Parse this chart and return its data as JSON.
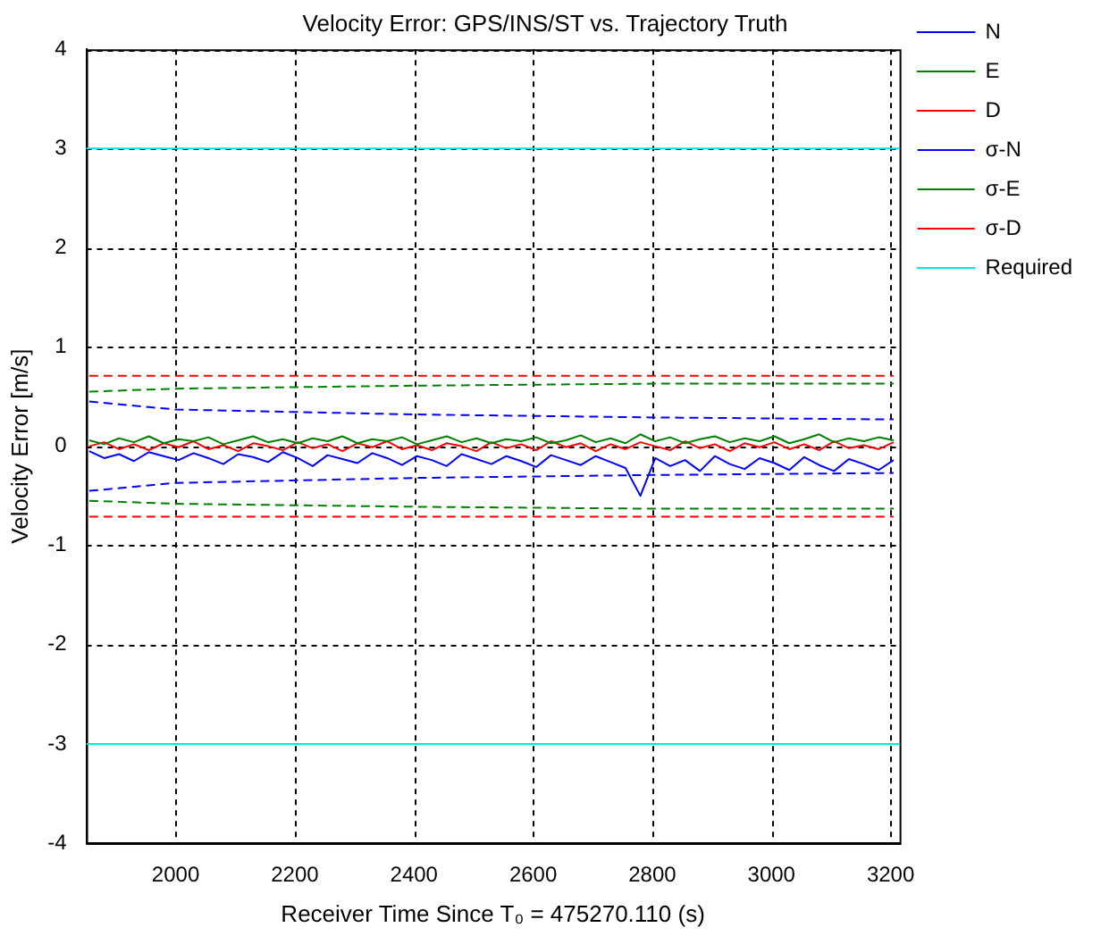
{
  "chart_data": {
    "type": "line",
    "title": "Velocity Error: GPS/INS/ST vs. Trajectory Truth",
    "xlabel": "Receiver Time Since T₀ = 475270.110 (s)",
    "ylabel": "Velocity Error [m/s]",
    "xlim": [
      1850,
      3215
    ],
    "xticks": [
      2000,
      2200,
      2400,
      2600,
      2800,
      3000,
      3200
    ],
    "ylim": [
      -4,
      4
    ],
    "yticks": [
      -4,
      -3,
      -2,
      -1,
      0,
      1,
      2,
      3,
      4
    ],
    "grid": true,
    "legend": "top right",
    "line_style": "solid",
    "marker": "none",
    "x": [
      1855,
      1880,
      1905,
      1930,
      1955,
      1980,
      2005,
      2030,
      2055,
      2080,
      2105,
      2130,
      2155,
      2180,
      2205,
      2230,
      2255,
      2280,
      2305,
      2330,
      2355,
      2380,
      2405,
      2430,
      2455,
      2480,
      2505,
      2530,
      2555,
      2580,
      2605,
      2630,
      2655,
      2680,
      2705,
      2730,
      2755,
      2780,
      2805,
      2830,
      2855,
      2880,
      2905,
      2930,
      2955,
      2980,
      3005,
      3030,
      3055,
      3080,
      3105,
      3130,
      3155,
      3180,
      3205
    ],
    "series": [
      {
        "name": "N",
        "color": "#0000ff",
        "values": [
          -0.05,
          -0.12,
          -0.08,
          -0.15,
          -0.06,
          -0.1,
          -0.14,
          -0.07,
          -0.12,
          -0.18,
          -0.08,
          -0.11,
          -0.16,
          -0.06,
          -0.12,
          -0.2,
          -0.09,
          -0.13,
          -0.17,
          -0.07,
          -0.12,
          -0.19,
          -0.1,
          -0.14,
          -0.2,
          -0.08,
          -0.13,
          -0.18,
          -0.1,
          -0.15,
          -0.21,
          -0.09,
          -0.14,
          -0.19,
          -0.1,
          -0.16,
          -0.22,
          -0.5,
          -0.12,
          -0.2,
          -0.14,
          -0.25,
          -0.1,
          -0.18,
          -0.23,
          -0.12,
          -0.17,
          -0.24,
          -0.11,
          -0.19,
          -0.25,
          -0.13,
          -0.18,
          -0.24,
          -0.14
        ]
      },
      {
        "name": "E",
        "color": "#008000",
        "values": [
          0.06,
          0.02,
          0.08,
          0.04,
          0.1,
          0.03,
          0.07,
          0.05,
          0.09,
          0.02,
          0.06,
          0.1,
          0.04,
          0.07,
          0.03,
          0.08,
          0.05,
          0.1,
          0.03,
          0.07,
          0.05,
          0.09,
          0.02,
          0.06,
          0.1,
          0.04,
          0.08,
          0.03,
          0.07,
          0.05,
          0.09,
          0.03,
          0.06,
          0.11,
          0.04,
          0.08,
          0.03,
          0.12,
          0.05,
          0.09,
          0.03,
          0.07,
          0.1,
          0.04,
          0.08,
          0.05,
          0.1,
          0.03,
          0.07,
          0.12,
          0.04,
          0.08,
          0.05,
          0.09,
          0.06
        ]
      },
      {
        "name": "D",
        "color": "#ff0000",
        "values": [
          0,
          0.04,
          -0.03,
          0.02,
          -0.04,
          0.03,
          -0.01,
          0.05,
          -0.03,
          0.01,
          -0.05,
          0.03,
          0,
          -0.04,
          0.04,
          -0.02,
          0.02,
          -0.05,
          0.03,
          -0.01,
          0.05,
          -0.03,
          0.01,
          -0.04,
          0.03,
          0,
          -0.05,
          0.04,
          -0.02,
          0.02,
          -0.04,
          0.05,
          -0.01,
          0.03,
          -0.05,
          0.02,
          -0.03,
          0.04,
          0,
          -0.04,
          0.05,
          -0.02,
          0.02,
          -0.05,
          0.03,
          -0.01,
          0.04,
          -0.03,
          0.02,
          -0.04,
          0.05,
          -0.02,
          0.01,
          -0.03,
          0.04
        ]
      },
      {
        "name": "σ-N",
        "color": "#0000ff",
        "line_style": "dashed",
        "x": [
          1855,
          2000,
          2400,
          2800,
          3205
        ],
        "values": [
          0.45,
          0.37,
          0.32,
          0.29,
          0.27
        ]
      },
      {
        "color": "#0000ff",
        "line_style": "dashed",
        "x": [
          1855,
          2000,
          2400,
          2800,
          3205
        ],
        "values": [
          -0.45,
          -0.37,
          -0.32,
          -0.29,
          -0.27
        ]
      },
      {
        "name": "σ-E",
        "color": "#008000",
        "line_style": "dashed",
        "x": [
          1855,
          2000,
          2400,
          2800,
          3205
        ],
        "values": [
          0.55,
          0.58,
          0.61,
          0.63,
          0.63
        ]
      },
      {
        "color": "#008000",
        "line_style": "dashed",
        "x": [
          1855,
          2000,
          2400,
          2800,
          3205
        ],
        "values": [
          -0.55,
          -0.58,
          -0.61,
          -0.63,
          -0.63
        ]
      },
      {
        "name": "σ-D",
        "color": "#ff0000",
        "line_style": "dashed",
        "x": [
          1855,
          2000,
          2400,
          2800,
          3205
        ],
        "values": [
          0.71,
          0.71,
          0.71,
          0.71,
          0.71
        ]
      },
      {
        "color": "#ff0000",
        "line_style": "dashed",
        "x": [
          1855,
          2000,
          2400,
          2800,
          3205
        ],
        "values": [
          -0.71,
          -0.71,
          -0.71,
          -0.71,
          -0.71
        ]
      },
      {
        "name": "Required",
        "color": "#00e5e5",
        "x": [
          1850,
          3215
        ],
        "values": [
          3,
          3
        ]
      },
      {
        "color": "#00e5e5",
        "x": [
          1850,
          3215
        ],
        "values": [
          -3,
          -3
        ]
      }
    ]
  }
}
